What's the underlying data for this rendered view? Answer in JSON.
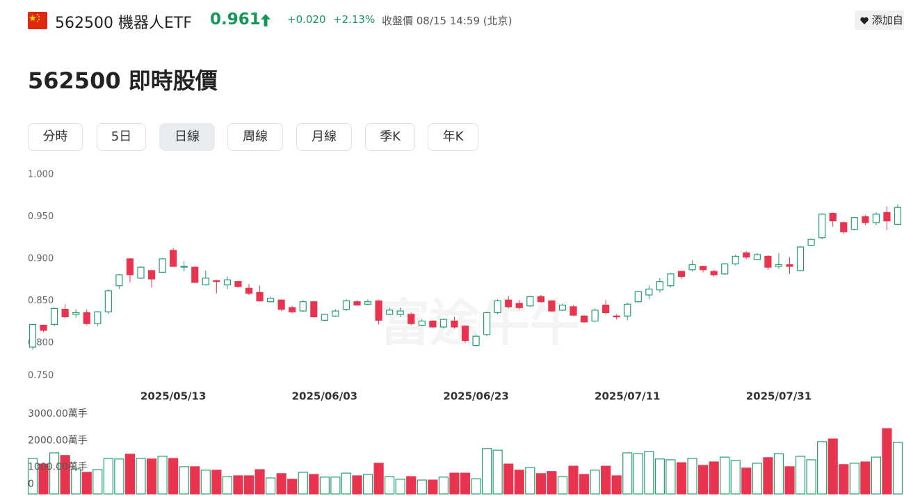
{
  "header": {
    "code": "562500 機器人ETF",
    "price": "0.961",
    "change": "+0.020",
    "change_pct": "+2.13%",
    "status": "收盤價 08/15 14:59 (北京)",
    "watchlist_button": "添加自"
  },
  "title": "562500 即時股價",
  "tabs": [
    "分時",
    "5日",
    "日線",
    "周線",
    "月線",
    "季K",
    "年K"
  ],
  "active_tab": 2,
  "chart_data": [
    {
      "type": "candlestick",
      "watermark": "富途牛牛",
      "up_color": "#22a06b",
      "down_color": "#e8344e",
      "grid": false,
      "categories": [
        null,
        null,
        null,
        null,
        null,
        null,
        null,
        null,
        null,
        null,
        null,
        null,
        null,
        "2025/05/13",
        null,
        null,
        null,
        null,
        null,
        null,
        null,
        null,
        null,
        null,
        null,
        null,
        null,
        "2025/06/03",
        null,
        null,
        null,
        null,
        null,
        null,
        null,
        null,
        null,
        null,
        null,
        null,
        null,
        "2025/06/23",
        null,
        null,
        null,
        null,
        null,
        null,
        null,
        null,
        null,
        null,
        null,
        null,
        null,
        "2025/07/11",
        null,
        null,
        null,
        null,
        null,
        null,
        null,
        null,
        null,
        null,
        null,
        null,
        null,
        "2025/07/31",
        null,
        null,
        null,
        null,
        null,
        null,
        null,
        null,
        null,
        null,
        null
      ],
      "open": [
        0.795,
        0.821,
        0.822,
        0.84,
        0.834,
        0.836,
        0.823,
        0.837,
        0.868,
        0.9,
        0.877,
        0.886,
        0.884,
        0.91,
        0.89,
        0.89,
        0.869,
        0.874,
        0.869,
        0.873,
        0.865,
        0.86,
        0.849,
        0.851,
        0.842,
        0.838,
        0.849,
        0.827,
        0.832,
        0.84,
        0.849,
        0.846,
        0.85,
        0.834,
        0.834,
        0.834,
        0.821,
        0.826,
        0.819,
        0.826,
        0.82,
        0.797,
        0.81,
        0.836,
        0.851,
        0.847,
        0.844,
        0.855,
        0.85,
        0.839,
        0.843,
        0.832,
        0.826,
        0.845,
        0.832,
        0.832,
        0.849,
        0.857,
        0.863,
        0.868,
        0.885,
        0.887,
        0.891,
        0.885,
        0.882,
        0.894,
        0.907,
        0.899,
        0.903,
        0.891,
        0.893,
        0.886,
        0.916,
        0.925,
        0.954,
        0.943,
        0.935,
        0.95,
        0.943,
        0.955,
        0.941
      ],
      "high": [
        0.822,
        0.822,
        0.842,
        0.846,
        0.84,
        0.84,
        0.838,
        0.864,
        0.882,
        0.901,
        0.891,
        0.887,
        0.901,
        0.913,
        0.897,
        0.891,
        0.886,
        0.875,
        0.879,
        0.874,
        0.87,
        0.868,
        0.855,
        0.852,
        0.844,
        0.851,
        0.85,
        0.835,
        0.84,
        0.852,
        0.851,
        0.852,
        0.851,
        0.842,
        0.842,
        0.836,
        0.828,
        0.827,
        0.829,
        0.831,
        0.821,
        0.81,
        0.837,
        0.852,
        0.856,
        0.851,
        0.856,
        0.857,
        0.851,
        0.847,
        0.845,
        0.833,
        0.841,
        0.851,
        0.834,
        0.848,
        0.862,
        0.868,
        0.877,
        0.883,
        0.886,
        0.898,
        0.892,
        0.887,
        0.895,
        0.905,
        0.909,
        0.907,
        0.904,
        0.907,
        0.902,
        0.915,
        0.924,
        0.954,
        0.955,
        0.944,
        0.95,
        0.952,
        0.955,
        0.962,
        0.965
      ],
      "low": [
        0.792,
        0.813,
        0.82,
        0.83,
        0.83,
        0.821,
        0.82,
        0.834,
        0.864,
        0.872,
        0.876,
        0.866,
        0.883,
        0.89,
        0.885,
        0.871,
        0.868,
        0.859,
        0.864,
        0.866,
        0.857,
        0.849,
        0.848,
        0.838,
        0.835,
        0.837,
        0.83,
        0.826,
        0.831,
        0.838,
        0.844,
        0.845,
        0.822,
        0.833,
        0.831,
        0.821,
        0.82,
        0.818,
        0.817,
        0.817,
        0.8,
        0.796,
        0.808,
        0.834,
        0.841,
        0.84,
        0.843,
        0.848,
        0.837,
        0.838,
        0.832,
        0.824,
        0.825,
        0.834,
        0.828,
        0.827,
        0.848,
        0.852,
        0.86,
        0.866,
        0.876,
        0.885,
        0.884,
        0.879,
        0.881,
        0.892,
        0.9,
        0.898,
        0.887,
        0.888,
        0.882,
        0.885,
        0.915,
        0.923,
        0.938,
        0.93,
        0.934,
        0.94,
        0.94,
        0.934,
        0.94
      ],
      "close": [
        0.822,
        0.815,
        0.841,
        0.831,
        0.836,
        0.823,
        0.837,
        0.862,
        0.881,
        0.881,
        0.89,
        0.876,
        0.9,
        0.891,
        0.891,
        0.872,
        0.877,
        0.873,
        0.875,
        0.867,
        0.859,
        0.85,
        0.853,
        0.84,
        0.837,
        0.849,
        0.831,
        0.834,
        0.838,
        0.85,
        0.845,
        0.849,
        0.827,
        0.839,
        0.838,
        0.823,
        0.826,
        0.819,
        0.828,
        0.819,
        0.803,
        0.808,
        0.836,
        0.85,
        0.843,
        0.842,
        0.855,
        0.849,
        0.838,
        0.845,
        0.833,
        0.825,
        0.839,
        0.836,
        0.831,
        0.846,
        0.861,
        0.864,
        0.873,
        0.882,
        0.879,
        0.893,
        0.887,
        0.881,
        0.894,
        0.903,
        0.902,
        0.905,
        0.89,
        0.893,
        0.891,
        0.914,
        0.923,
        0.953,
        0.945,
        0.932,
        0.949,
        0.943,
        0.953,
        0.945,
        0.961
      ],
      "ylim": [
        0.75,
        1.0
      ],
      "yticks": [
        {
          "value": 1.0,
          "label": "1.000"
        },
        {
          "value": 0.95,
          "label": "0.950"
        },
        {
          "value": 0.9,
          "label": "0.900"
        },
        {
          "value": 0.85,
          "label": "0.850"
        },
        {
          "value": 0.8,
          "label": "0.800"
        },
        {
          "value": 0.75,
          "label": "0.750"
        }
      ]
    },
    {
      "type": "volume",
      "values": [
        1330,
        1120,
        1540,
        1440,
        940,
        810,
        910,
        1330,
        1310,
        1490,
        1330,
        1310,
        1410,
        1330,
        1020,
        1020,
        890,
        890,
        650,
        680,
        680,
        910,
        600,
        760,
        550,
        810,
        730,
        630,
        630,
        780,
        680,
        730,
        1150,
        650,
        550,
        650,
        520,
        520,
        630,
        780,
        780,
        570,
        1700,
        1640,
        1120,
        890,
        990,
        760,
        840,
        650,
        1040,
        730,
        890,
        1040,
        680,
        1540,
        1510,
        1590,
        1310,
        1280,
        1170,
        1330,
        1070,
        1200,
        1380,
        1250,
        970,
        1150,
        1360,
        1510,
        1020,
        1410,
        1280,
        1960,
        2060,
        1100,
        1150,
        1200,
        1380,
        2450,
        1930
      ],
      "ylim": [
        0,
        3000
      ],
      "yticks": [
        {
          "value": 3000,
          "label": "3000.00萬手"
        },
        {
          "value": 2000,
          "label": "2000.00萬手"
        },
        {
          "value": 1000,
          "label": "1000.00萬手"
        },
        0
      ]
    }
  ]
}
